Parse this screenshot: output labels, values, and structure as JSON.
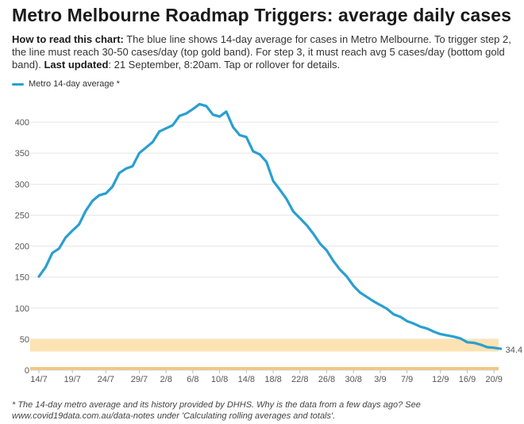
{
  "header": {
    "title": "Metro Melbourne Roadmap Triggers: average daily cases",
    "how_label": "How to read this chart:",
    "how_text": " The blue line shows 14-day average for cases in Metro Melbourne. To trigger step 2, the line must reach 30-50 cases/day (top gold band). For step 3, it must reach avg 5 cases/day (bottom gold band). ",
    "updated_label": "Last updated",
    "updated_text": ": 21 September, 8:20am. Tap or rollover for details."
  },
  "legend": {
    "label": "Metro 14-day average *"
  },
  "footnote": "* The 14-day metro average and its history provided by DHHS. Why is the data from a few days ago? See www.covid19data.com.au/data-notes under 'Calculating rolling averages and totals'.",
  "colors": {
    "line": "#2a9fd0",
    "band": "#fde3b4",
    "band_edge": "#f6c57a",
    "grid": "#e6e6e6"
  },
  "chart_data": {
    "type": "line",
    "title": "Metro Melbourne Roadmap Triggers: average daily cases",
    "xlabel": "",
    "ylabel": "",
    "ylim": [
      0,
      430
    ],
    "y_ticks": [
      "0",
      "50",
      "100",
      "150",
      "200",
      "250",
      "300",
      "350",
      "400"
    ],
    "x_tick_labels": [
      "14/7",
      "19/7",
      "24/7",
      "29/7",
      "2/8",
      "6/8",
      "10/8",
      "14/8",
      "18/8",
      "22/8",
      "26/8",
      "30/8",
      "3/9",
      "7/9",
      "12/9",
      "16/9",
      "20/9"
    ],
    "x_tick_index": [
      0,
      5,
      10,
      15,
      19,
      23,
      27,
      31,
      35,
      39,
      43,
      47,
      51,
      55,
      60,
      64,
      68
    ],
    "bands": [
      {
        "name": "Step 2 trigger",
        "range": [
          30,
          50
        ]
      },
      {
        "name": "Step 3 trigger",
        "range": [
          0,
          5
        ]
      }
    ],
    "last_value_label": "34.4",
    "series": [
      {
        "name": "Metro 14-day average *",
        "start_date": "14/7",
        "values": [
          151,
          166,
          189,
          196,
          214,
          225,
          235,
          257,
          273,
          282,
          285,
          296,
          318,
          325,
          329,
          350,
          359,
          368,
          385,
          390,
          395,
          410,
          414,
          421,
          429,
          426,
          412,
          409,
          417,
          392,
          379,
          376,
          353,
          348,
          336,
          305,
          291,
          276,
          256,
          245,
          234,
          220,
          204,
          193,
          176,
          162,
          151,
          136,
          125,
          118,
          111,
          105,
          99,
          90,
          86,
          79,
          75,
          70,
          67,
          62,
          58,
          56,
          54,
          51,
          45,
          44,
          41,
          37,
          36,
          34.4
        ]
      }
    ]
  }
}
